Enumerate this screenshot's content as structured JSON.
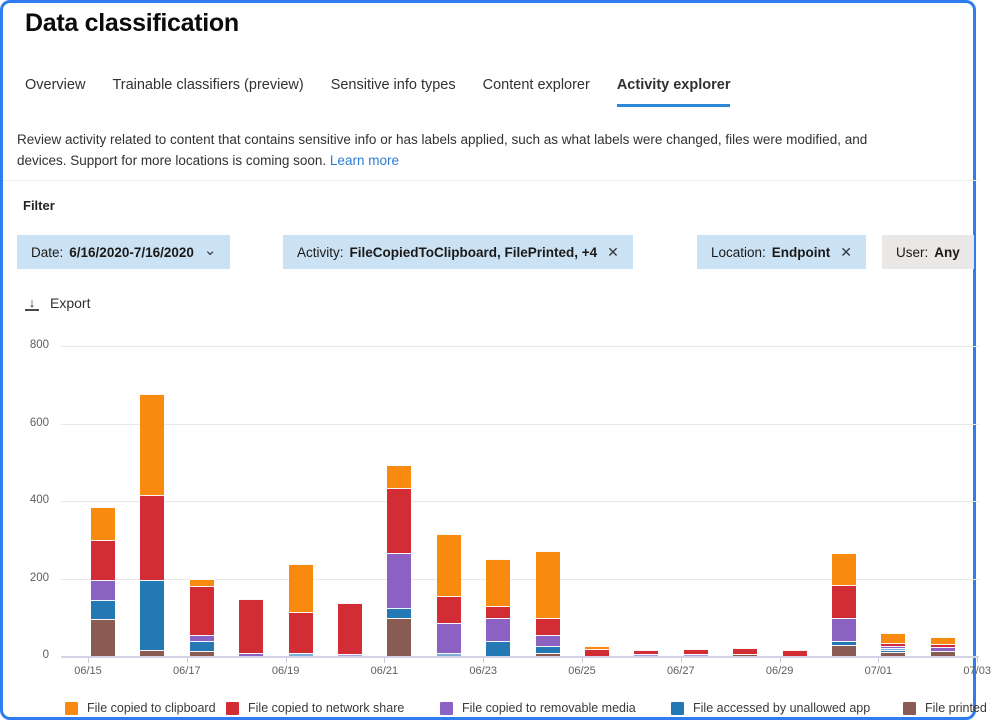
{
  "page": {
    "title": "Data classification"
  },
  "tabs": [
    {
      "label": "Overview",
      "active": false
    },
    {
      "label": "Trainable classifiers (preview)",
      "active": false
    },
    {
      "label": "Sensitive info types",
      "active": false
    },
    {
      "label": "Content explorer",
      "active": false
    },
    {
      "label": "Activity explorer",
      "active": true
    }
  ],
  "description": {
    "line1": "Review activity related to content that contains sensitive info or has labels applied, such as what labels were changed, files were modified, and",
    "line2": "devices. Support for more locations is coming soon.",
    "link": "Learn more"
  },
  "filter": {
    "label": "Filter",
    "chips": [
      {
        "name": "date",
        "label": "Date:",
        "value": "6/16/2020-7/16/2020",
        "control": "chevron",
        "style": "blue"
      },
      {
        "name": "activity",
        "label": "Activity:",
        "value": "FileCopiedToClipboard, FilePrinted, +4",
        "control": "close",
        "style": "blue"
      },
      {
        "name": "location",
        "label": "Location:",
        "value": "Endpoint",
        "control": "close",
        "style": "blue"
      },
      {
        "name": "user",
        "label": "User:",
        "value": "Any",
        "control": "none",
        "style": "gray"
      }
    ]
  },
  "toolbar": {
    "export_label": "Export"
  },
  "icons": {
    "download": "↓",
    "chevron_down": "⌄",
    "close": "✕"
  },
  "chart_data": {
    "type": "stacked-bar",
    "title": "",
    "xlabel": "",
    "ylabel": "",
    "ylim": [
      0,
      800
    ],
    "ytick_labels": [
      "0",
      "200",
      "400",
      "600",
      "800"
    ],
    "yticks": [
      0,
      200,
      400,
      600,
      800
    ],
    "grid": "horizontal",
    "legend_position": "bottom",
    "x_tick_labels": [
      "06/15",
      "06/17",
      "06/19",
      "06/21",
      "06/23",
      "06/25",
      "06/27",
      "06/29",
      "07/01",
      "07/03"
    ],
    "categories": [
      "06/15",
      "06/16",
      "06/17",
      "06/18",
      "06/19",
      "06/20",
      "06/21",
      "06/22",
      "06/23",
      "06/24",
      "06/25",
      "06/26",
      "06/27",
      "06/28",
      "06/29",
      "06/30",
      "07/01",
      "07/02"
    ],
    "colors": {
      "orange": "#F88A0F",
      "red": "#D22D34",
      "purple": "#8B61C2",
      "blue": "#2478B4",
      "brown": "#8A5B52",
      "lightblue": "#7FAEDC",
      "lavender": "#A9A4DB"
    },
    "series": [
      {
        "color_key": "brown",
        "legend_label": "File printed",
        "values": [
          95,
          15,
          12,
          0,
          0,
          0,
          98,
          0,
          0,
          7,
          0,
          0,
          0,
          6,
          0,
          29,
          10,
          14
        ]
      },
      {
        "color_key": "blue",
        "legend_label": "File accessed by unallowed app",
        "values": [
          50,
          180,
          26,
          0,
          0,
          0,
          26,
          0,
          38,
          18,
          0,
          0,
          0,
          0,
          0,
          10,
          6,
          0
        ]
      },
      {
        "color_key": "lightblue",
        "legend_label": "",
        "values": [
          0,
          0,
          0,
          0,
          8,
          0,
          0,
          9,
          0,
          0,
          0,
          0,
          0,
          0,
          0,
          0,
          4,
          0
        ]
      },
      {
        "color_key": "lavender",
        "legend_label": "",
        "values": [
          0,
          0,
          0,
          0,
          0,
          6,
          0,
          0,
          0,
          0,
          0,
          6,
          4,
          0,
          0,
          0,
          0,
          0
        ]
      },
      {
        "color_key": "purple",
        "legend_label": "File copied to removable media",
        "values": [
          50,
          0,
          16,
          8,
          0,
          0,
          142,
          77,
          60,
          28,
          0,
          0,
          0,
          0,
          0,
          59,
          5,
          9
        ]
      },
      {
        "color_key": "red",
        "legend_label": "File copied to network share",
        "values": [
          105,
          220,
          127,
          140,
          105,
          132,
          168,
          70,
          32,
          46,
          18,
          10,
          14,
          16,
          15,
          85,
          8,
          8
        ]
      },
      {
        "color_key": "orange",
        "legend_label": "File copied to clipboard",
        "values": [
          85,
          260,
          19,
          0,
          125,
          0,
          60,
          160,
          120,
          171,
          8,
          0,
          0,
          0,
          0,
          83,
          25,
          18
        ]
      }
    ],
    "legend": [
      {
        "label": "File copied to clipboard",
        "color_key": "orange"
      },
      {
        "label": "File copied to network share",
        "color_key": "red"
      },
      {
        "label": "File copied to removable media",
        "color_key": "purple"
      },
      {
        "label": "File accessed by unallowed app",
        "color_key": "blue"
      },
      {
        "label": "File printed",
        "color_key": "brown"
      }
    ]
  }
}
